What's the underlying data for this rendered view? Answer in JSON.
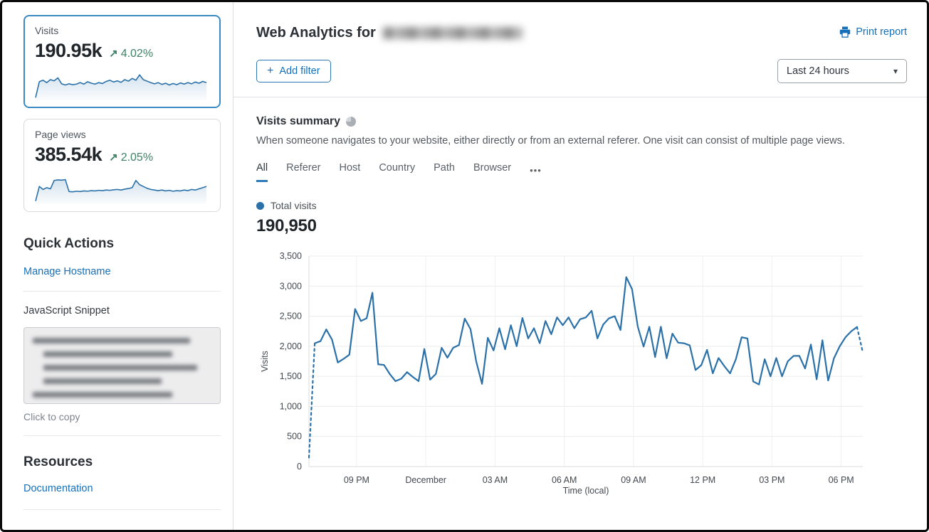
{
  "colors": {
    "link_blue": "#1670b9",
    "chart_blue": "#2b71a9",
    "selected_card_border": "#3c8ac4",
    "positive_green": "#3e8266",
    "text_dark": "#24292e",
    "text_gray": "#595f66"
  },
  "icons": {
    "trend_up": "↗",
    "plus": "+",
    "caret_down": "▾",
    "dots_more": "•••"
  },
  "sidebar": {
    "metric_cards": [
      {
        "label": "Visits",
        "value": "190.95k",
        "delta": "4.02%",
        "trend": "up",
        "selected": true,
        "spark": [
          2,
          55,
          60,
          52,
          62,
          58,
          68,
          48,
          44,
          48,
          45,
          47,
          52,
          47,
          55,
          50,
          47,
          52,
          49,
          56,
          60,
          54,
          58,
          53,
          62,
          57,
          66,
          60,
          78,
          62,
          57,
          52,
          48,
          52,
          46,
          50,
          44,
          49,
          45,
          51,
          47,
          52,
          48,
          54,
          50,
          56,
          52
        ]
      },
      {
        "label": "Page views",
        "value": "385.54k",
        "delta": "2.05%",
        "trend": "up",
        "selected": false,
        "spark": [
          3,
          52,
          42,
          48,
          44,
          72,
          74,
          73,
          75,
          35,
          34,
          36,
          35,
          37,
          36,
          38,
          37,
          39,
          38,
          40,
          39,
          41,
          42,
          40,
          43,
          45,
          48,
          72,
          58,
          52,
          46,
          42,
          40,
          38,
          40,
          37,
          39,
          36,
          38,
          37,
          40,
          38,
          42,
          40,
          44,
          48,
          52
        ]
      }
    ],
    "quick_actions": {
      "title": "Quick Actions",
      "manage_hostname": "Manage Hostname",
      "js_snippet_label": "JavaScript Snippet",
      "snippet_redacted": true,
      "click_to_copy": "Click to copy"
    },
    "resources": {
      "title": "Resources",
      "documentation": "Documentation"
    }
  },
  "header": {
    "title": "Web Analytics for",
    "domain_redacted": true,
    "print_report": "Print report",
    "add_filter_label": "Add filter",
    "time_range": "Last 24 hours"
  },
  "summary": {
    "title": "Visits summary",
    "description": "When someone navigates to your website, either directly or from an external referer. One visit can consist of multiple page views.",
    "tabs": [
      "All",
      "Referer",
      "Host",
      "Country",
      "Path",
      "Browser"
    ],
    "active_tab": "All",
    "legend_label": "Total visits",
    "total_value": "190,950"
  },
  "chart_data": {
    "type": "line",
    "title": "Visits summary — Total visits",
    "xlabel": "Time (local)",
    "ylabel": "Visits",
    "ylim": [
      0,
      3500
    ],
    "ytick_values": [
      0,
      500,
      1000,
      1500,
      2000,
      2500,
      3000,
      3500
    ],
    "ytick_labels": [
      "0",
      "500",
      "1,000",
      "1,500",
      "2,000",
      "2,500",
      "3,000",
      "3,500"
    ],
    "xticks": [
      {
        "label": "09 PM",
        "pos": 0.086
      },
      {
        "label": "December",
        "pos": 0.211
      },
      {
        "label": "03 AM",
        "pos": 0.336
      },
      {
        "label": "06 AM",
        "pos": 0.461
      },
      {
        "label": "09 AM",
        "pos": 0.586
      },
      {
        "label": "12 PM",
        "pos": 0.711
      },
      {
        "label": "03 PM",
        "pos": 0.836
      },
      {
        "label": "06 PM",
        "pos": 0.961
      }
    ],
    "grid": true,
    "legend_position": "top-left",
    "series": [
      {
        "name": "Total visits",
        "color": "#2b71a9",
        "dashed_lead_points": 2,
        "dashed_tail_points": 2,
        "values": [
          150,
          2050,
          2085,
          2280,
          2110,
          1730,
          1790,
          1860,
          2620,
          2420,
          2465,
          2890,
          1700,
          1690,
          1540,
          1420,
          1460,
          1570,
          1490,
          1420,
          1955,
          1445,
          1540,
          1975,
          1810,
          1975,
          2020,
          2460,
          2285,
          1745,
          1375,
          2140,
          1930,
          2300,
          1950,
          2350,
          2000,
          2470,
          2130,
          2300,
          2050,
          2420,
          2200,
          2480,
          2350,
          2480,
          2300,
          2450,
          2480,
          2590,
          2130,
          2360,
          2465,
          2500,
          2270,
          3150,
          2950,
          2325,
          1995,
          2325,
          1820,
          2325,
          1800,
          2210,
          2060,
          2050,
          2015,
          1605,
          1685,
          1940,
          1550,
          1805,
          1670,
          1550,
          1785,
          2150,
          2130,
          1415,
          1365,
          1785,
          1500,
          1805,
          1500,
          1750,
          1840,
          1840,
          1630,
          2030,
          1450,
          2100,
          1430,
          1800,
          2000,
          2150,
          2250,
          2320,
          1900
        ]
      }
    ]
  }
}
